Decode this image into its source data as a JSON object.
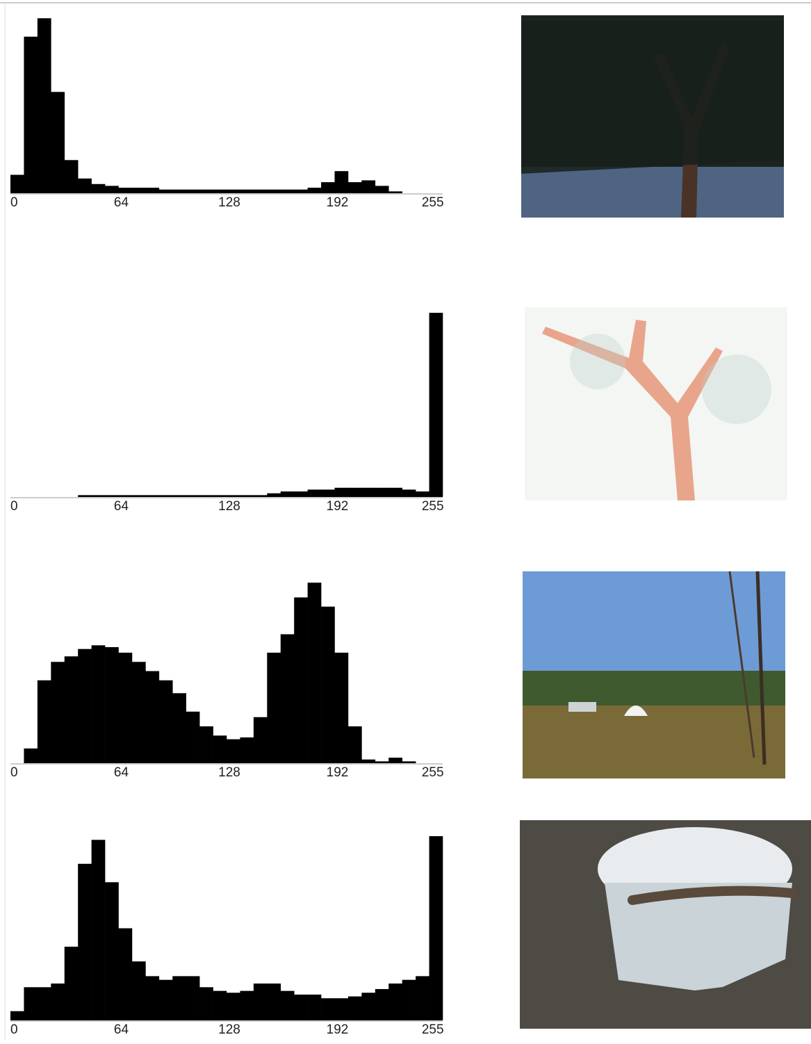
{
  "chart_data": [
    {
      "type": "histogram",
      "color": "#000000",
      "xlim": [
        0,
        256
      ],
      "ylim": [
        0,
        100
      ],
      "xticks": [
        0,
        64,
        128,
        192,
        255
      ],
      "bins": [
        0,
        8,
        16,
        24,
        32,
        40,
        48,
        56,
        64,
        72,
        80,
        88,
        96,
        104,
        112,
        120,
        128,
        136,
        144,
        152,
        160,
        168,
        176,
        184,
        192,
        200,
        208,
        216,
        224,
        232,
        240,
        248,
        256
      ],
      "counts": [
        10,
        85,
        95,
        55,
        18,
        8,
        5,
        4,
        3,
        3,
        3,
        2,
        2,
        2,
        2,
        2,
        2,
        2,
        2,
        2,
        2,
        2,
        3,
        6,
        12,
        6,
        7,
        4,
        1,
        0,
        0,
        0
      ]
    },
    {
      "type": "histogram",
      "color": "#000000",
      "xlim": [
        0,
        256
      ],
      "ylim": [
        0,
        100
      ],
      "xticks": [
        0,
        64,
        128,
        192,
        255
      ],
      "bins": [
        0,
        8,
        16,
        24,
        32,
        40,
        48,
        56,
        64,
        72,
        80,
        88,
        96,
        104,
        112,
        120,
        128,
        136,
        144,
        152,
        160,
        168,
        176,
        184,
        192,
        200,
        208,
        216,
        224,
        232,
        240,
        248,
        256
      ],
      "counts": [
        0,
        0,
        0,
        0,
        0,
        1,
        1,
        1,
        1,
        1,
        1,
        1,
        1,
        1,
        1,
        1,
        1,
        1,
        1,
        2,
        3,
        3,
        4,
        4,
        5,
        5,
        5,
        5,
        5,
        4,
        3,
        100
      ]
    },
    {
      "type": "histogram",
      "color": "#000000",
      "xlim": [
        0,
        256
      ],
      "ylim": [
        0,
        100
      ],
      "xticks": [
        0,
        64,
        128,
        192,
        255
      ],
      "bins": [
        0,
        8,
        16,
        24,
        32,
        40,
        48,
        56,
        64,
        72,
        80,
        88,
        96,
        104,
        112,
        120,
        128,
        136,
        144,
        152,
        160,
        168,
        176,
        184,
        192,
        200,
        208,
        216,
        224,
        232,
        240,
        248,
        256
      ],
      "counts": [
        0,
        8,
        45,
        55,
        58,
        62,
        64,
        63,
        60,
        55,
        50,
        45,
        38,
        28,
        20,
        15,
        13,
        14,
        25,
        60,
        70,
        90,
        98,
        85,
        60,
        20,
        2,
        1,
        3,
        1,
        0,
        0
      ]
    },
    {
      "type": "histogram",
      "color": "#000000",
      "xlim": [
        0,
        256
      ],
      "ylim": [
        0,
        100
      ],
      "xticks": [
        0,
        64,
        128,
        192,
        255
      ],
      "bins": [
        0,
        8,
        16,
        24,
        32,
        40,
        48,
        56,
        64,
        72,
        80,
        88,
        96,
        104,
        112,
        120,
        128,
        136,
        144,
        152,
        160,
        168,
        176,
        184,
        192,
        200,
        208,
        216,
        224,
        232,
        240,
        248,
        256
      ],
      "counts": [
        5,
        18,
        18,
        20,
        40,
        85,
        98,
        75,
        50,
        32,
        24,
        22,
        24,
        24,
        18,
        16,
        15,
        16,
        20,
        20,
        16,
        14,
        14,
        12,
        12,
        13,
        15,
        17,
        20,
        22,
        24,
        100
      ]
    }
  ]
}
